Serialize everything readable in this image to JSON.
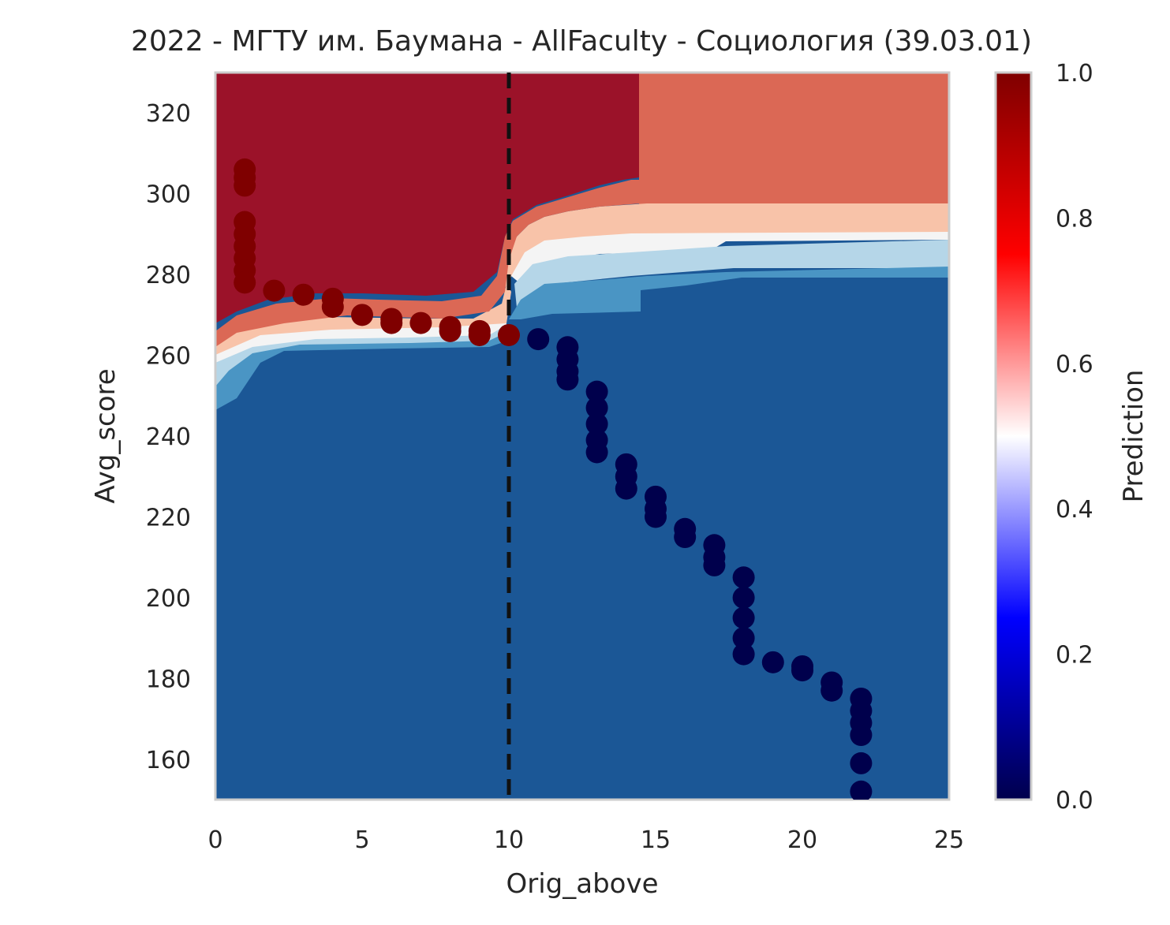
{
  "chart_data": {
    "type": "scatter",
    "title": "2022 - МГТУ им. Баумана - AllFaculty - Социология (39.03.01)",
    "xlabel": "Orig_above",
    "ylabel": "Avg_score",
    "xlim": [
      0,
      25
    ],
    "ylim": [
      150,
      330
    ],
    "xticks": [
      0,
      5,
      10,
      15,
      20,
      25
    ],
    "yticks": [
      160,
      180,
      200,
      220,
      240,
      260,
      280,
      300,
      320
    ],
    "grid": false,
    "vline": {
      "x": 10,
      "style": "dashed",
      "color": "#111111"
    },
    "background": {
      "type": "filled_contour",
      "description_levels": [
        "#1b5796",
        "#4a95c4",
        "#b5d6e8",
        "#f4f4f4",
        "#f8c3a9",
        "#db6855",
        "#9b1229"
      ]
    },
    "series": [
      {
        "color": "#7f0000",
        "points": [
          [
            1,
            306
          ],
          [
            1,
            304
          ],
          [
            1,
            302
          ],
          [
            1,
            293
          ],
          [
            1,
            290
          ],
          [
            1,
            287
          ],
          [
            1,
            284
          ],
          [
            1,
            281
          ],
          [
            1,
            278
          ],
          [
            2,
            276
          ],
          [
            3,
            275
          ],
          [
            4,
            274
          ],
          [
            4,
            272
          ],
          [
            5,
            270
          ],
          [
            6,
            269
          ],
          [
            6,
            268
          ],
          [
            7,
            268
          ],
          [
            8,
            267
          ],
          [
            8,
            266
          ],
          [
            9,
            266
          ],
          [
            9,
            265
          ],
          [
            10,
            265
          ]
        ]
      },
      {
        "color": "#00004c",
        "points": [
          [
            11,
            264
          ],
          [
            12,
            262
          ],
          [
            12,
            259
          ],
          [
            12,
            256
          ],
          [
            12,
            254
          ],
          [
            13,
            251
          ],
          [
            13,
            247
          ],
          [
            13,
            243
          ],
          [
            13,
            239
          ],
          [
            13,
            236
          ],
          [
            14,
            233
          ],
          [
            14,
            230
          ],
          [
            14,
            227
          ],
          [
            15,
            225
          ],
          [
            15,
            222
          ],
          [
            15,
            220
          ],
          [
            16,
            217
          ],
          [
            16,
            215
          ],
          [
            17,
            213
          ],
          [
            17,
            210
          ],
          [
            17,
            208
          ],
          [
            18,
            205
          ],
          [
            18,
            200
          ],
          [
            18,
            195
          ],
          [
            18,
            190
          ],
          [
            18,
            186
          ],
          [
            19,
            184
          ],
          [
            20,
            183
          ],
          [
            20,
            182
          ],
          [
            21,
            179
          ],
          [
            21,
            177
          ],
          [
            22,
            175
          ],
          [
            22,
            172
          ],
          [
            22,
            169
          ],
          [
            22,
            166
          ],
          [
            22,
            159
          ],
          [
            22,
            152
          ]
        ]
      }
    ],
    "colorbar": {
      "label": "Prediction",
      "ticks": [
        "0.0",
        "0.2",
        "0.4",
        "0.6",
        "0.8",
        "1.0"
      ],
      "range": [
        0,
        1
      ],
      "cmap": "seismic"
    }
  }
}
